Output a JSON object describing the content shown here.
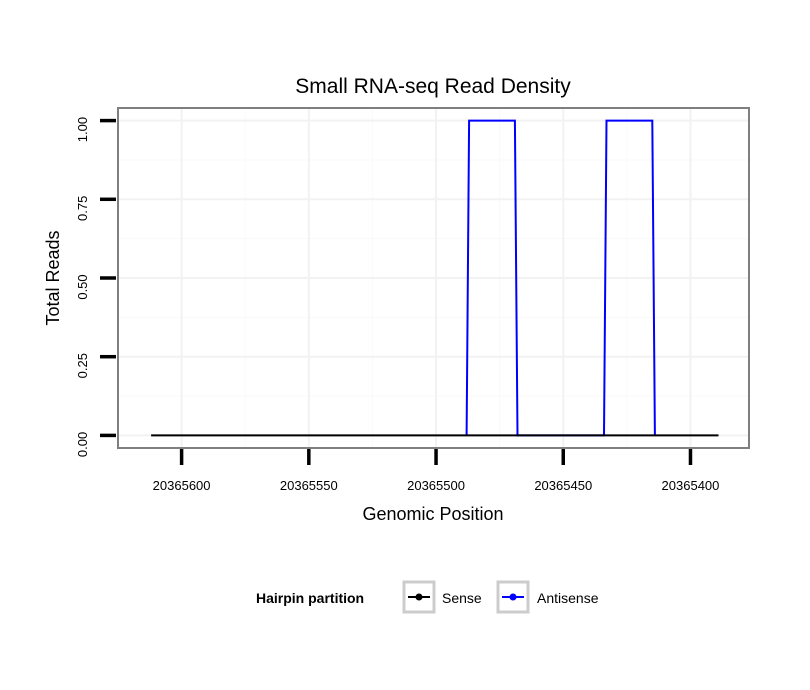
{
  "chart_data": {
    "type": "line",
    "title": "Small RNA-seq Read Density",
    "xlabel": "Genomic Position",
    "ylabel": "Total Reads",
    "x_reversed": true,
    "xlim": [
      20365625,
      20365377
    ],
    "ylim": [
      -0.04,
      1.04
    ],
    "x_ticks": [
      20365600,
      20365550,
      20365500,
      20365450,
      20365400
    ],
    "x_tick_labels": [
      "20365600",
      "20365550",
      "20365500",
      "20365450",
      "20365400"
    ],
    "y_ticks": [
      0,
      0.25,
      0.5,
      0.75,
      1
    ],
    "y_tick_labels": [
      "0.00",
      "0.25",
      "0.50",
      "0.75",
      "1.00"
    ],
    "grid": true,
    "legend": {
      "title": "Hairpin partition",
      "position": "bottom",
      "entries": [
        "Sense",
        "Antisense"
      ]
    },
    "series": [
      {
        "name": "Antisense",
        "color": "#0000ff",
        "x": [
          20365488,
          20365487,
          20365469,
          20365468,
          20365434,
          20365433,
          20365415,
          20365414
        ],
        "y": [
          0,
          1,
          1,
          0,
          0,
          1,
          1,
          0
        ]
      },
      {
        "name": "Sense",
        "color": "#000000",
        "x": [
          20365612,
          20365389
        ],
        "y": [
          0,
          0
        ]
      }
    ]
  }
}
